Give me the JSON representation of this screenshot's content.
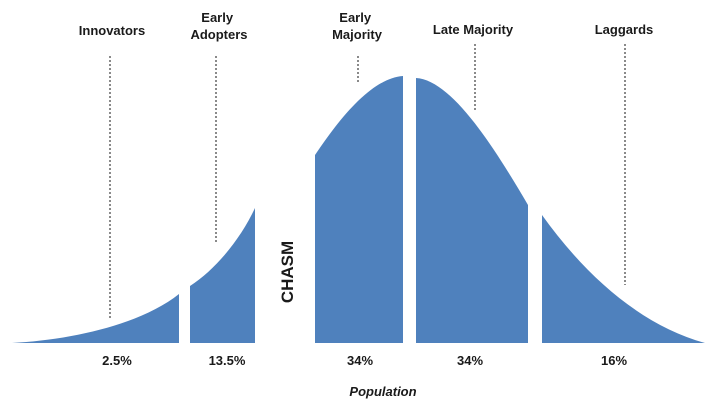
{
  "colors": {
    "curve_fill": "#4f81bd",
    "text": "#1a1a1a",
    "leader": "#8a8a8a"
  },
  "segments": [
    {
      "id": "innovators",
      "label_lines": [
        "Innovators"
      ],
      "percent": "2.5%"
    },
    {
      "id": "early-adopters",
      "label_lines": [
        "Early",
        "Adopters"
      ],
      "percent": "13.5%"
    },
    {
      "id": "early-majority",
      "label_lines": [
        "Early",
        "Majority"
      ],
      "percent": "34%"
    },
    {
      "id": "late-majority",
      "label_lines": [
        "Late Majority"
      ],
      "percent": "34%"
    },
    {
      "id": "laggards",
      "label_lines": [
        "Laggards"
      ],
      "percent": "16%"
    }
  ],
  "chasm_label": "CHASM",
  "axis_title": "Population"
}
